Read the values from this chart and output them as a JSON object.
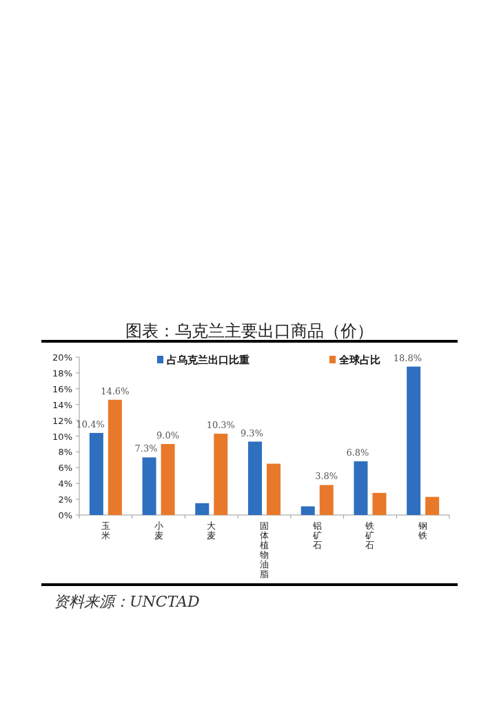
{
  "chart_data": {
    "type": "bar",
    "title": "图表：乌克兰主要出口商品（价）",
    "categories": [
      "玉米",
      "小麦",
      "大麦",
      "固体植物油脂",
      "铝矿石",
      "铁矿石",
      "钢铁"
    ],
    "series": [
      {
        "name": "占乌克兰出口比重",
        "color": "#2e6fbf",
        "values": [
          10.4,
          7.3,
          1.5,
          9.3,
          1.1,
          6.8,
          18.8
        ],
        "value_labels": [
          "10.4%",
          "7.3%",
          null,
          "9.3%",
          null,
          "6.8%",
          "18.8%"
        ]
      },
      {
        "name": "全球占比",
        "color": "#e8792a",
        "values": [
          14.6,
          9.0,
          10.3,
          6.5,
          3.8,
          2.8,
          2.3
        ],
        "value_labels": [
          "14.6%",
          "9.0%",
          "10.3%",
          null,
          "3.8%",
          null,
          null
        ]
      }
    ],
    "ylim": [
      0,
      20
    ],
    "yticks": [
      {
        "value": 0,
        "label": "0%"
      },
      {
        "value": 2,
        "label": "2%"
      },
      {
        "value": 4,
        "label": "4%"
      },
      {
        "value": 6,
        "label": "6%"
      },
      {
        "value": 8,
        "label": "8%"
      },
      {
        "value": 10,
        "label": "10%"
      },
      {
        "value": 12,
        "label": "12%"
      },
      {
        "value": 14,
        "label": "14%"
      },
      {
        "value": 16,
        "label": "16%"
      },
      {
        "value": 18,
        "label": "18%"
      },
      {
        "value": 20,
        "label": "20%"
      }
    ],
    "legend": "top",
    "annotations": [
      "资料来源：UNCTAD"
    ]
  }
}
